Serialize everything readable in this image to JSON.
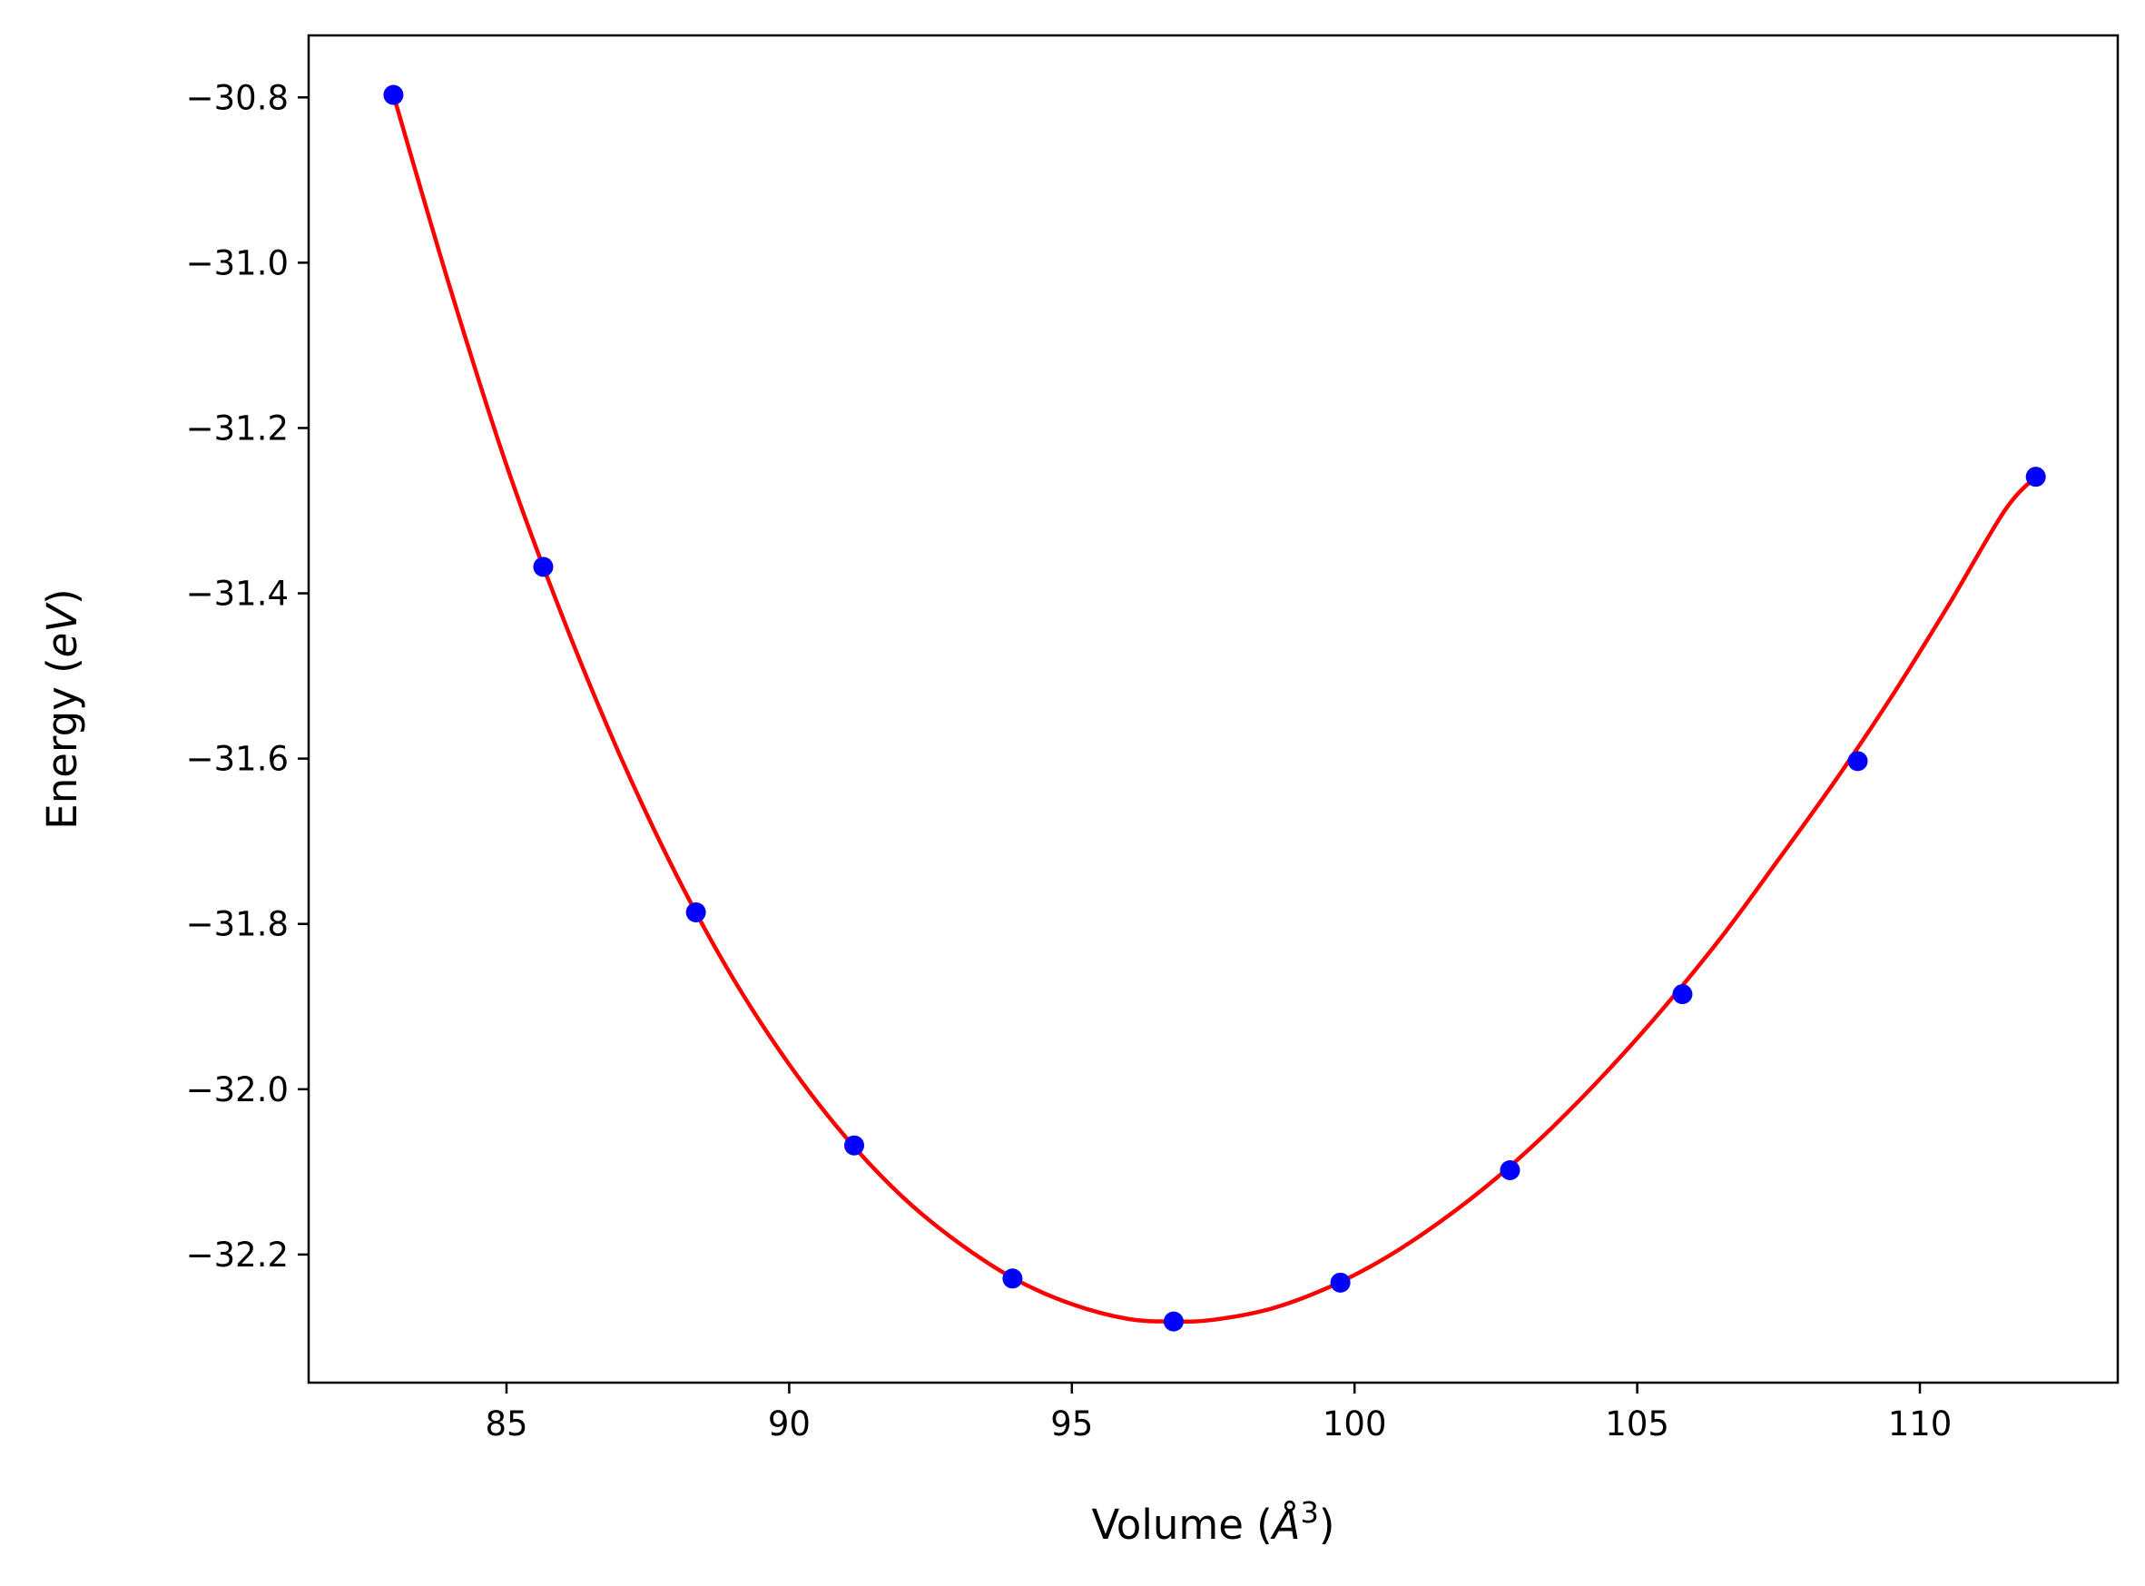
{
  "chart_data": {
    "type": "scatter",
    "title": "",
    "xlabel": "Volume (Å³)",
    "xlabel_parts": {
      "prefix": "Volume (",
      "unit": "Å",
      "sup": "3",
      "suffix": ")"
    },
    "ylabel": "Energy (eV)",
    "ylabel_parts": {
      "prefix": "Energy (",
      "unit": "eV",
      "suffix": ")"
    },
    "xlim": [
      81.5,
      113.5
    ],
    "ylim": [
      -32.355,
      -30.725
    ],
    "xticks": [
      85,
      90,
      95,
      100,
      105,
      110
    ],
    "xtick_labels": [
      "85",
      "90",
      "95",
      "100",
      "105",
      "110"
    ],
    "yticks": [
      -30.8,
      -31.0,
      -31.2,
      -31.4,
      -31.6,
      -31.8,
      -32.0,
      -32.2
    ],
    "ytick_labels": [
      "−30.8",
      "−31.0",
      "−31.2",
      "−31.4",
      "−31.6",
      "−31.8",
      "−32.0",
      "−32.2"
    ],
    "grid": false,
    "series": [
      {
        "kind": "points",
        "color": "#0000ff",
        "x": [
          83.0,
          85.65,
          88.35,
          91.15,
          93.95,
          96.8,
          99.75,
          102.75,
          105.8,
          108.9,
          112.05
        ],
        "y": [
          -30.797,
          -31.368,
          -31.786,
          -32.068,
          -32.229,
          -32.281,
          -32.234,
          -32.098,
          -31.885,
          -31.603,
          -31.259
        ]
      },
      {
        "kind": "fit-curve",
        "color": "#ff0000",
        "x": [
          83.0,
          84.0,
          85.0,
          86.0,
          87.0,
          88.0,
          89.0,
          90.0,
          91.0,
          92.0,
          93.0,
          94.0,
          95.0,
          96.0,
          96.8,
          97.5,
          98.5,
          99.5,
          100.5,
          101.5,
          102.5,
          103.5,
          104.5,
          105.5,
          106.5,
          107.5,
          108.5,
          109.5,
          110.5,
          111.5,
          112.05
        ],
        "y": [
          -30.797,
          -31.03,
          -31.245,
          -31.43,
          -31.595,
          -31.74,
          -31.865,
          -31.97,
          -32.058,
          -32.13,
          -32.186,
          -32.23,
          -32.26,
          -32.278,
          -32.281,
          -32.279,
          -32.266,
          -32.241,
          -32.206,
          -32.161,
          -32.108,
          -32.046,
          -31.976,
          -31.899,
          -31.815,
          -31.722,
          -31.627,
          -31.525,
          -31.415,
          -31.3,
          -31.259
        ]
      }
    ]
  }
}
